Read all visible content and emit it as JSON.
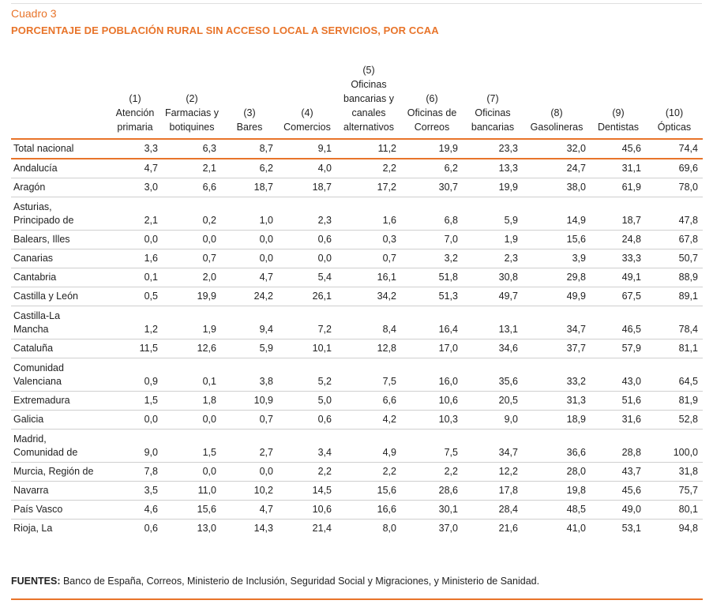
{
  "caption": "Cuadro 3",
  "title": "PORCENTAJE DE POBLACIÓN RURAL SIN ACCESO LOCAL A SERVICIOS, POR CCAA",
  "colors": {
    "accent": "#e8742a",
    "rule": "#cfcfcf"
  },
  "columns": [
    [
      "(1)",
      "Atención",
      "primaria"
    ],
    [
      "(2)",
      "Farmacias y",
      "botiquines"
    ],
    [
      "(3)",
      "Bares"
    ],
    [
      "(4)",
      "Comercios"
    ],
    [
      "(5)",
      "Oficinas",
      "bancarias y",
      "canales",
      "alternativos"
    ],
    [
      "(6)",
      "Oficinas de",
      "Correos"
    ],
    [
      "(7)",
      "Oficinas",
      "bancarias"
    ],
    [
      "(8)",
      "Gasolineras"
    ],
    [
      "(9)",
      "Dentistas"
    ],
    [
      "(10)",
      "Ópticas"
    ]
  ],
  "rows": [
    {
      "name": [
        "Total nacional"
      ],
      "values": [
        "3,3",
        "6,3",
        "8,7",
        "9,1",
        "11,2",
        "19,9",
        "23,3",
        "32,0",
        "45,6",
        "74,4"
      ]
    },
    {
      "name": [
        "Andalucía"
      ],
      "values": [
        "4,7",
        "2,1",
        "6,2",
        "4,0",
        "2,2",
        "6,2",
        "13,3",
        "24,7",
        "31,1",
        "69,6"
      ]
    },
    {
      "name": [
        "Aragón"
      ],
      "values": [
        "3,0",
        "6,6",
        "18,7",
        "18,7",
        "17,2",
        "30,7",
        "19,9",
        "38,0",
        "61,9",
        "78,0"
      ]
    },
    {
      "name": [
        "Asturias,",
        "Principado de"
      ],
      "values": [
        "2,1",
        "0,2",
        "1,0",
        "2,3",
        "1,6",
        "6,8",
        "5,9",
        "14,9",
        "18,7",
        "47,8"
      ]
    },
    {
      "name": [
        "Balears, Illes"
      ],
      "values": [
        "0,0",
        "0,0",
        "0,0",
        "0,6",
        "0,3",
        "7,0",
        "1,9",
        "15,6",
        "24,8",
        "67,8"
      ]
    },
    {
      "name": [
        "Canarias"
      ],
      "values": [
        "1,6",
        "0,7",
        "0,0",
        "0,0",
        "0,7",
        "3,2",
        "2,3",
        "3,9",
        "33,3",
        "50,7"
      ]
    },
    {
      "name": [
        "Cantabria"
      ],
      "values": [
        "0,1",
        "2,0",
        "4,7",
        "5,4",
        "16,1",
        "51,8",
        "30,8",
        "29,8",
        "49,1",
        "88,9"
      ]
    },
    {
      "name": [
        "Castilla y León"
      ],
      "values": [
        "0,5",
        "19,9",
        "24,2",
        "26,1",
        "34,2",
        "51,3",
        "49,7",
        "49,9",
        "67,5",
        "89,1"
      ]
    },
    {
      "name": [
        "Castilla-La",
        "Mancha"
      ],
      "values": [
        "1,2",
        "1,9",
        "9,4",
        "7,2",
        "8,4",
        "16,4",
        "13,1",
        "34,7",
        "46,5",
        "78,4"
      ]
    },
    {
      "name": [
        "Cataluña"
      ],
      "values": [
        "11,5",
        "12,6",
        "5,9",
        "10,1",
        "12,8",
        "17,0",
        "34,6",
        "37,7",
        "57,9",
        "81,1"
      ]
    },
    {
      "name": [
        "Comunidad",
        "Valenciana"
      ],
      "values": [
        "0,9",
        "0,1",
        "3,8",
        "5,2",
        "7,5",
        "16,0",
        "35,6",
        "33,2",
        "43,0",
        "64,5"
      ]
    },
    {
      "name": [
        "Extremadura"
      ],
      "values": [
        "1,5",
        "1,8",
        "10,9",
        "5,0",
        "6,6",
        "10,6",
        "20,5",
        "31,3",
        "51,6",
        "81,9"
      ]
    },
    {
      "name": [
        "Galicia"
      ],
      "values": [
        "0,0",
        "0,0",
        "0,7",
        "0,6",
        "4,2",
        "10,3",
        "9,0",
        "18,9",
        "31,6",
        "52,8"
      ]
    },
    {
      "name": [
        "Madrid,",
        "Comunidad de"
      ],
      "values": [
        "9,0",
        "1,5",
        "2,7",
        "3,4",
        "4,9",
        "7,5",
        "34,7",
        "36,6",
        "28,8",
        "100,0"
      ]
    },
    {
      "name": [
        "Murcia, Región de"
      ],
      "values": [
        "7,8",
        "0,0",
        "0,0",
        "2,2",
        "2,2",
        "2,2",
        "12,2",
        "28,0",
        "43,7",
        "31,8"
      ]
    },
    {
      "name": [
        "Navarra"
      ],
      "values": [
        "3,5",
        "11,0",
        "10,2",
        "14,5",
        "15,6",
        "28,6",
        "17,8",
        "19,8",
        "45,6",
        "75,7"
      ]
    },
    {
      "name": [
        "País Vasco"
      ],
      "values": [
        "4,6",
        "15,6",
        "4,7",
        "10,6",
        "16,6",
        "30,1",
        "28,4",
        "48,5",
        "49,0",
        "80,1"
      ]
    },
    {
      "name": [
        "Rioja, La"
      ],
      "values": [
        "0,6",
        "13,0",
        "14,3",
        "21,4",
        "8,0",
        "37,0",
        "21,6",
        "41,0",
        "53,1",
        "94,8"
      ]
    }
  ],
  "sources": {
    "label": "FUENTES:",
    "text": " Banco de España, Correos, Ministerio de Inclusión, Seguridad Social y Migraciones, y Ministerio de Sanidad."
  }
}
